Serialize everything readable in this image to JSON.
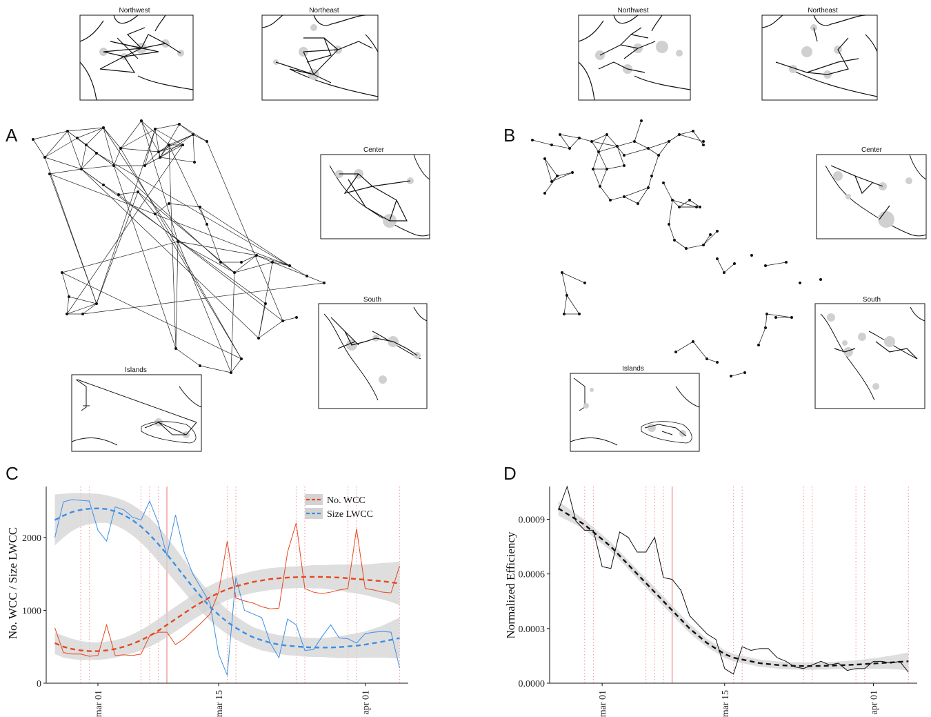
{
  "panels": {
    "a": "A",
    "b": "B",
    "c": "C",
    "d": "D"
  },
  "insets": {
    "northwest": "Northwest",
    "northeast": "Northeast",
    "center": "Center",
    "south": "South",
    "islands": "Islands"
  },
  "colors": {
    "wcc": "#e8461e",
    "lwcc": "#3a8ee6",
    "efficiency": "#111111",
    "ribbon": "#d3d3d3",
    "event_lines": "#f4a0a0"
  },
  "chart_data": [
    {
      "panel": "C",
      "type": "line",
      "ylabel": "No. WCC / Size LWCC",
      "xlabel": "",
      "x_tick_labels": [
        "mar 01",
        "mar 15",
        "apr 01"
      ],
      "x_tick_days": [
        5,
        19,
        36
      ],
      "y_ticks": [
        0,
        1000,
        2000
      ],
      "ylim": [
        0,
        2700
      ],
      "xlim": [
        -1,
        41
      ],
      "grid": false,
      "legend": "top-right",
      "series": [
        {
          "name": "No. WCC",
          "color": "#e8461e",
          "x": [
            0,
            1,
            2,
            3,
            4,
            5,
            6,
            7,
            8,
            9,
            10,
            11,
            12,
            13,
            14,
            15,
            16,
            17,
            18,
            19,
            20,
            21,
            22,
            23,
            24,
            25,
            26,
            27,
            28,
            29,
            30,
            31,
            32,
            33,
            34,
            35,
            36,
            37,
            38,
            39,
            40
          ],
          "values": [
            760,
            420,
            400,
            400,
            370,
            380,
            800,
            380,
            390,
            380,
            400,
            650,
            700,
            700,
            530,
            610,
            720,
            830,
            950,
            1250,
            1950,
            1170,
            1130,
            1100,
            1050,
            1020,
            1030,
            1800,
            2200,
            1300,
            1250,
            1230,
            1250,
            1280,
            1300,
            2120,
            1300,
            1280,
            1250,
            1240,
            1610
          ]
        },
        {
          "name": "Size LWCC",
          "color": "#3a8ee6",
          "x": [
            0,
            1,
            2,
            3,
            4,
            5,
            6,
            7,
            8,
            9,
            10,
            11,
            12,
            13,
            14,
            15,
            16,
            17,
            18,
            19,
            20,
            21,
            22,
            23,
            24,
            25,
            26,
            27,
            28,
            29,
            30,
            31,
            32,
            33,
            34,
            35,
            36,
            37,
            38,
            39,
            40
          ],
          "values": [
            2000,
            2490,
            2520,
            2510,
            2500,
            2100,
            1950,
            2420,
            2380,
            2280,
            2240,
            2500,
            2200,
            1750,
            2310,
            1800,
            1500,
            1300,
            1100,
            400,
            110,
            1450,
            1000,
            950,
            900,
            550,
            350,
            880,
            800,
            450,
            460,
            640,
            800,
            620,
            610,
            550,
            680,
            700,
            710,
            700,
            210
          ]
        },
        {
          "name": "No. WCC trend",
          "style": "dashed",
          "x": [
            0,
            1,
            2,
            3,
            4,
            5,
            6,
            7,
            8,
            9,
            10,
            11,
            12,
            13,
            14,
            15,
            16,
            17,
            18,
            19,
            20,
            21,
            22,
            23,
            24,
            25,
            26,
            27,
            28,
            29,
            30,
            31,
            32,
            33,
            34,
            35,
            36,
            37,
            38,
            39,
            40
          ],
          "values": [
            550,
            500,
            470,
            450,
            440,
            440,
            450,
            470,
            500,
            540,
            590,
            650,
            720,
            800,
            880,
            960,
            1040,
            1110,
            1180,
            1240,
            1290,
            1330,
            1360,
            1390,
            1410,
            1430,
            1440,
            1450,
            1455,
            1460,
            1460,
            1460,
            1455,
            1450,
            1440,
            1430,
            1420,
            1410,
            1400,
            1385,
            1370
          ],
          "band": [
            150,
            150,
            140,
            130,
            120,
            120,
            120,
            120,
            120,
            130,
            140,
            150,
            160,
            170,
            170,
            170,
            170,
            170,
            160,
            160,
            150,
            150,
            150,
            150,
            150,
            150,
            150,
            150,
            150,
            150,
            160,
            160,
            170,
            180,
            190,
            200,
            210,
            230,
            250,
            270,
            300
          ]
        },
        {
          "name": "Size LWCC trend",
          "style": "dashed",
          "x": [
            0,
            1,
            2,
            3,
            4,
            5,
            6,
            7,
            8,
            9,
            10,
            11,
            12,
            13,
            14,
            15,
            16,
            17,
            18,
            19,
            20,
            21,
            22,
            23,
            24,
            25,
            26,
            27,
            28,
            29,
            30,
            31,
            32,
            33,
            34,
            35,
            36,
            37,
            38,
            39,
            40
          ],
          "values": [
            2240,
            2300,
            2350,
            2380,
            2395,
            2400,
            2390,
            2360,
            2310,
            2240,
            2150,
            2040,
            1910,
            1770,
            1620,
            1470,
            1320,
            1180,
            1050,
            940,
            840,
            760,
            690,
            630,
            590,
            555,
            530,
            515,
            505,
            495,
            490,
            490,
            490,
            495,
            505,
            515,
            530,
            550,
            570,
            595,
            620
          ],
          "band": [
            350,
            300,
            260,
            230,
            210,
            200,
            190,
            190,
            200,
            210,
            220,
            230,
            240,
            240,
            230,
            220,
            210,
            200,
            190,
            180,
            170,
            160,
            150,
            140,
            140,
            130,
            130,
            130,
            130,
            130,
            130,
            130,
            140,
            150,
            160,
            170,
            180,
            200,
            220,
            250,
            280
          ]
        }
      ],
      "event_lines": {
        "dotted_days": [
          3,
          4,
          10,
          11,
          12,
          20,
          21,
          28,
          29,
          34,
          35,
          40
        ],
        "solid_day": 13
      }
    },
    {
      "panel": "D",
      "type": "line",
      "ylabel": "Normalized Efficiency",
      "xlabel": "",
      "x_tick_labels": [
        "mar 01",
        "mar 15",
        "apr 01"
      ],
      "x_tick_days": [
        5,
        19,
        36
      ],
      "y_ticks": [
        0.0,
        0.0003,
        0.0006,
        0.0009
      ],
      "y_tick_labels": [
        "0.0000",
        "0.0003",
        "0.0006",
        "0.0009"
      ],
      "ylim": [
        0,
        0.00108
      ],
      "xlim": [
        -1,
        41
      ],
      "grid": false,
      "series": [
        {
          "name": "Efficiency",
          "color": "#111111",
          "x": [
            0,
            1,
            2,
            3,
            4,
            5,
            6,
            7,
            8,
            9,
            10,
            11,
            12,
            13,
            14,
            15,
            16,
            17,
            18,
            19,
            20,
            21,
            22,
            23,
            24,
            25,
            26,
            27,
            28,
            29,
            30,
            31,
            32,
            33,
            34,
            35,
            36,
            37,
            38,
            39,
            40
          ],
          "values": [
            0.00095,
            0.00108,
            0.00089,
            0.00084,
            0.00084,
            0.00064,
            0.00063,
            0.00083,
            0.0008,
            0.00072,
            0.00072,
            0.0008,
            0.00058,
            0.00057,
            0.00051,
            0.00037,
            0.00032,
            0.00027,
            0.00024,
            8e-05,
            5e-05,
            0.0002,
            0.00018,
            0.00019,
            0.00019,
            0.00014,
            0.00012,
            9e-05,
            8e-05,
            0.0001,
            0.00012,
            0.0001,
            0.00011,
            7e-05,
            8e-05,
            8e-05,
            0.00012,
            0.00012,
            0.00011,
            0.00012,
            6e-05
          ]
        },
        {
          "name": "Efficiency trend",
          "style": "dashed",
          "x": [
            0,
            1,
            2,
            3,
            4,
            5,
            6,
            7,
            8,
            9,
            10,
            11,
            12,
            13,
            14,
            15,
            16,
            17,
            18,
            19,
            20,
            21,
            22,
            23,
            24,
            25,
            26,
            27,
            28,
            29,
            30,
            31,
            32,
            33,
            34,
            35,
            36,
            37,
            38,
            39,
            40
          ],
          "values": [
            0.00096,
            0.00093,
            0.0009,
            0.00087,
            0.00083,
            0.00079,
            0.00075,
            0.0007,
            0.00065,
            0.0006,
            0.00055,
            0.0005,
            0.00045,
            0.0004,
            0.00035,
            0.0003,
            0.00026,
            0.00022,
            0.00019,
            0.00016,
            0.00014,
            0.00013,
            0.00012,
            0.00011,
            0.000105,
            0.0001,
            9.7e-05,
            9.5e-05,
            9.4e-05,
            9.4e-05,
            9.5e-05,
            9.6e-05,
            9.8e-05,
            0.0001,
            0.000102,
            0.000105,
            0.000108,
            0.000111,
            0.000114,
            0.000117,
            0.00012
          ],
          "band": [
            4e-05,
            3.5e-05,
            3e-05,
            2.8e-05,
            2.6e-05,
            2.5e-05,
            2.4e-05,
            2.4e-05,
            2.4e-05,
            2.5e-05,
            2.6e-05,
            2.7e-05,
            2.7e-05,
            2.7e-05,
            2.6e-05,
            2.5e-05,
            2.4e-05,
            2.3e-05,
            2.2e-05,
            2.1e-05,
            2e-05,
            2e-05,
            2e-05,
            2e-05,
            2e-05,
            2e-05,
            2e-05,
            2e-05,
            2e-05,
            2e-05,
            2e-05,
            2e-05,
            2.1e-05,
            2.2e-05,
            2.4e-05,
            2.6e-05,
            2.9e-05,
            3.3e-05,
            3.7e-05,
            4.2e-05,
            4.8e-05
          ]
        }
      ],
      "event_lines": {
        "dotted_days": [
          3,
          4,
          10,
          11,
          12,
          20,
          21,
          28,
          29,
          34,
          35,
          40
        ],
        "solid_day": 13
      }
    }
  ]
}
